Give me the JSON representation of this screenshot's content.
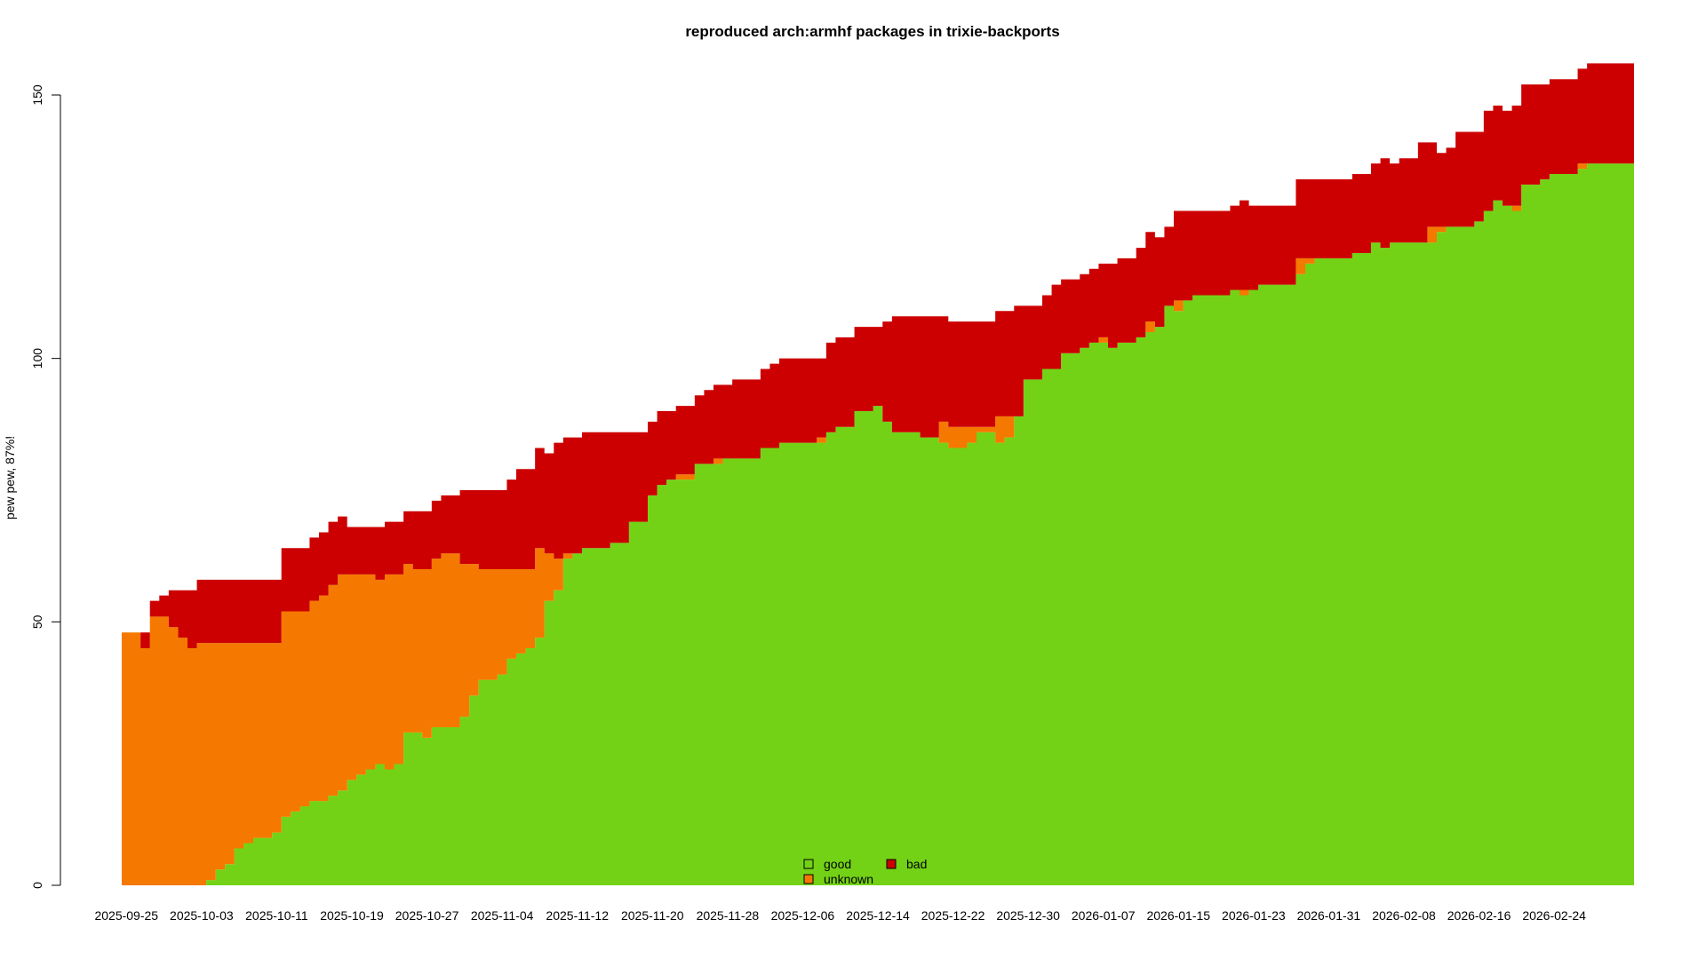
{
  "chart_data": {
    "type": "area",
    "stacked": true,
    "title": "reproduced arch:armhf packages in trixie-backports",
    "xlabel": "",
    "ylabel": "pew pew, 87%!",
    "ylim": [
      0,
      150
    ],
    "y_ticks": [
      0,
      50,
      100,
      150
    ],
    "x_tick_labels": [
      "2025-09-25",
      "2025-10-03",
      "2025-10-11",
      "2025-10-19",
      "2025-10-27",
      "2025-11-04",
      "2025-11-12",
      "2025-11-20",
      "2025-11-28",
      "2025-12-06",
      "2025-12-14",
      "2025-12-22",
      "2025-12-30",
      "2026-01-07",
      "2026-01-15",
      "2026-01-23",
      "2026-01-31",
      "2026-02-08",
      "2026-02-16",
      "2026-02-24"
    ],
    "grid": false,
    "legend_placement": "bottom-center",
    "x_start": "2025-09-25",
    "series": [
      {
        "name": "good",
        "color": "#73d216",
        "values": [
          0,
          0,
          0,
          0,
          0,
          0,
          0,
          0,
          0,
          1,
          3,
          4,
          7,
          8,
          9,
          9,
          10,
          13,
          14,
          15,
          16,
          16,
          17,
          18,
          20,
          21,
          22,
          23,
          22,
          23,
          29,
          29,
          28,
          30,
          30,
          30,
          32,
          36,
          39,
          39,
          40,
          43,
          44,
          45,
          47,
          54,
          56,
          62,
          63,
          64,
          64,
          64,
          65,
          65,
          69,
          69,
          74,
          76,
          77,
          77,
          77,
          80,
          80,
          80,
          81,
          81,
          81,
          81,
          83,
          83,
          84,
          84,
          84,
          84,
          84,
          86,
          87,
          87,
          90,
          90,
          91,
          88,
          86,
          86,
          86,
          85,
          85,
          84,
          83,
          83,
          84,
          86,
          86,
          84,
          85,
          89,
          96,
          96,
          98,
          98,
          101,
          101,
          102,
          103,
          103,
          102,
          103,
          103,
          104,
          105,
          106,
          110,
          109,
          111,
          112,
          112,
          112,
          112,
          113,
          112,
          113,
          114,
          114,
          114,
          114,
          116,
          118,
          119,
          119,
          119,
          119,
          120,
          120,
          122,
          121,
          122,
          122,
          122,
          122,
          122,
          124,
          125,
          125,
          125,
          126,
          128,
          130,
          129,
          128,
          133,
          133,
          134,
          135,
          135,
          135,
          136,
          137,
          137,
          137,
          137,
          137
        ]
      },
      {
        "name": "unknown",
        "color": "#f57900",
        "values": [
          48,
          48,
          45,
          51,
          51,
          49,
          47,
          45,
          46,
          45,
          43,
          42,
          39,
          38,
          37,
          37,
          36,
          39,
          38,
          37,
          38,
          39,
          40,
          41,
          39,
          38,
          37,
          35,
          37,
          36,
          32,
          31,
          32,
          32,
          33,
          33,
          29,
          25,
          21,
          21,
          20,
          17,
          16,
          15,
          17,
          9,
          6,
          1,
          0,
          0,
          0,
          0,
          0,
          0,
          0,
          0,
          0,
          0,
          0,
          1,
          1,
          0,
          0,
          1,
          0,
          0,
          0,
          0,
          0,
          0,
          0,
          0,
          0,
          0,
          1,
          0,
          0,
          0,
          0,
          0,
          0,
          0,
          0,
          0,
          0,
          0,
          0,
          4,
          4,
          4,
          3,
          1,
          1,
          5,
          4,
          0,
          0,
          0,
          0,
          0,
          0,
          0,
          0,
          0,
          1,
          0,
          0,
          0,
          0,
          2,
          0,
          0,
          2,
          0,
          0,
          0,
          0,
          0,
          0,
          1,
          0,
          0,
          0,
          0,
          0,
          3,
          1,
          0,
          0,
          0,
          0,
          0,
          0,
          0,
          0,
          0,
          0,
          0,
          0,
          3,
          1,
          0,
          0,
          0,
          0,
          0,
          0,
          0,
          1,
          0,
          0,
          0,
          0,
          0,
          0,
          1,
          0,
          0,
          0,
          0,
          0
        ]
      },
      {
        "name": "bad",
        "color": "#cc0000",
        "values": [
          0,
          0,
          3,
          3,
          4,
          7,
          9,
          11,
          12,
          12,
          12,
          12,
          12,
          12,
          12,
          12,
          12,
          12,
          12,
          12,
          12,
          12,
          12,
          11,
          9,
          9,
          9,
          10,
          10,
          10,
          10,
          11,
          11,
          11,
          11,
          11,
          14,
          14,
          15,
          15,
          15,
          17,
          19,
          19,
          19,
          19,
          22,
          22,
          22,
          22,
          22,
          22,
          21,
          21,
          17,
          17,
          14,
          14,
          13,
          13,
          13,
          13,
          14,
          14,
          14,
          15,
          15,
          15,
          15,
          16,
          16,
          16,
          16,
          16,
          15,
          17,
          17,
          17,
          16,
          16,
          15,
          19,
          22,
          22,
          22,
          23,
          23,
          20,
          20,
          20,
          20,
          20,
          20,
          20,
          20,
          21,
          14,
          14,
          14,
          16,
          14,
          14,
          14,
          14,
          14,
          16,
          16,
          16,
          17,
          17,
          17,
          15,
          17,
          17,
          16,
          16,
          16,
          16,
          16,
          17,
          16,
          15,
          15,
          15,
          15,
          15,
          15,
          15,
          15,
          15,
          15,
          15,
          15,
          15,
          17,
          15,
          16,
          16,
          19,
          16,
          14,
          15,
          18,
          18,
          17,
          19,
          18,
          18,
          19,
          19,
          19,
          18,
          18,
          18,
          18,
          18,
          19,
          19,
          19,
          19,
          19
        ]
      }
    ]
  }
}
